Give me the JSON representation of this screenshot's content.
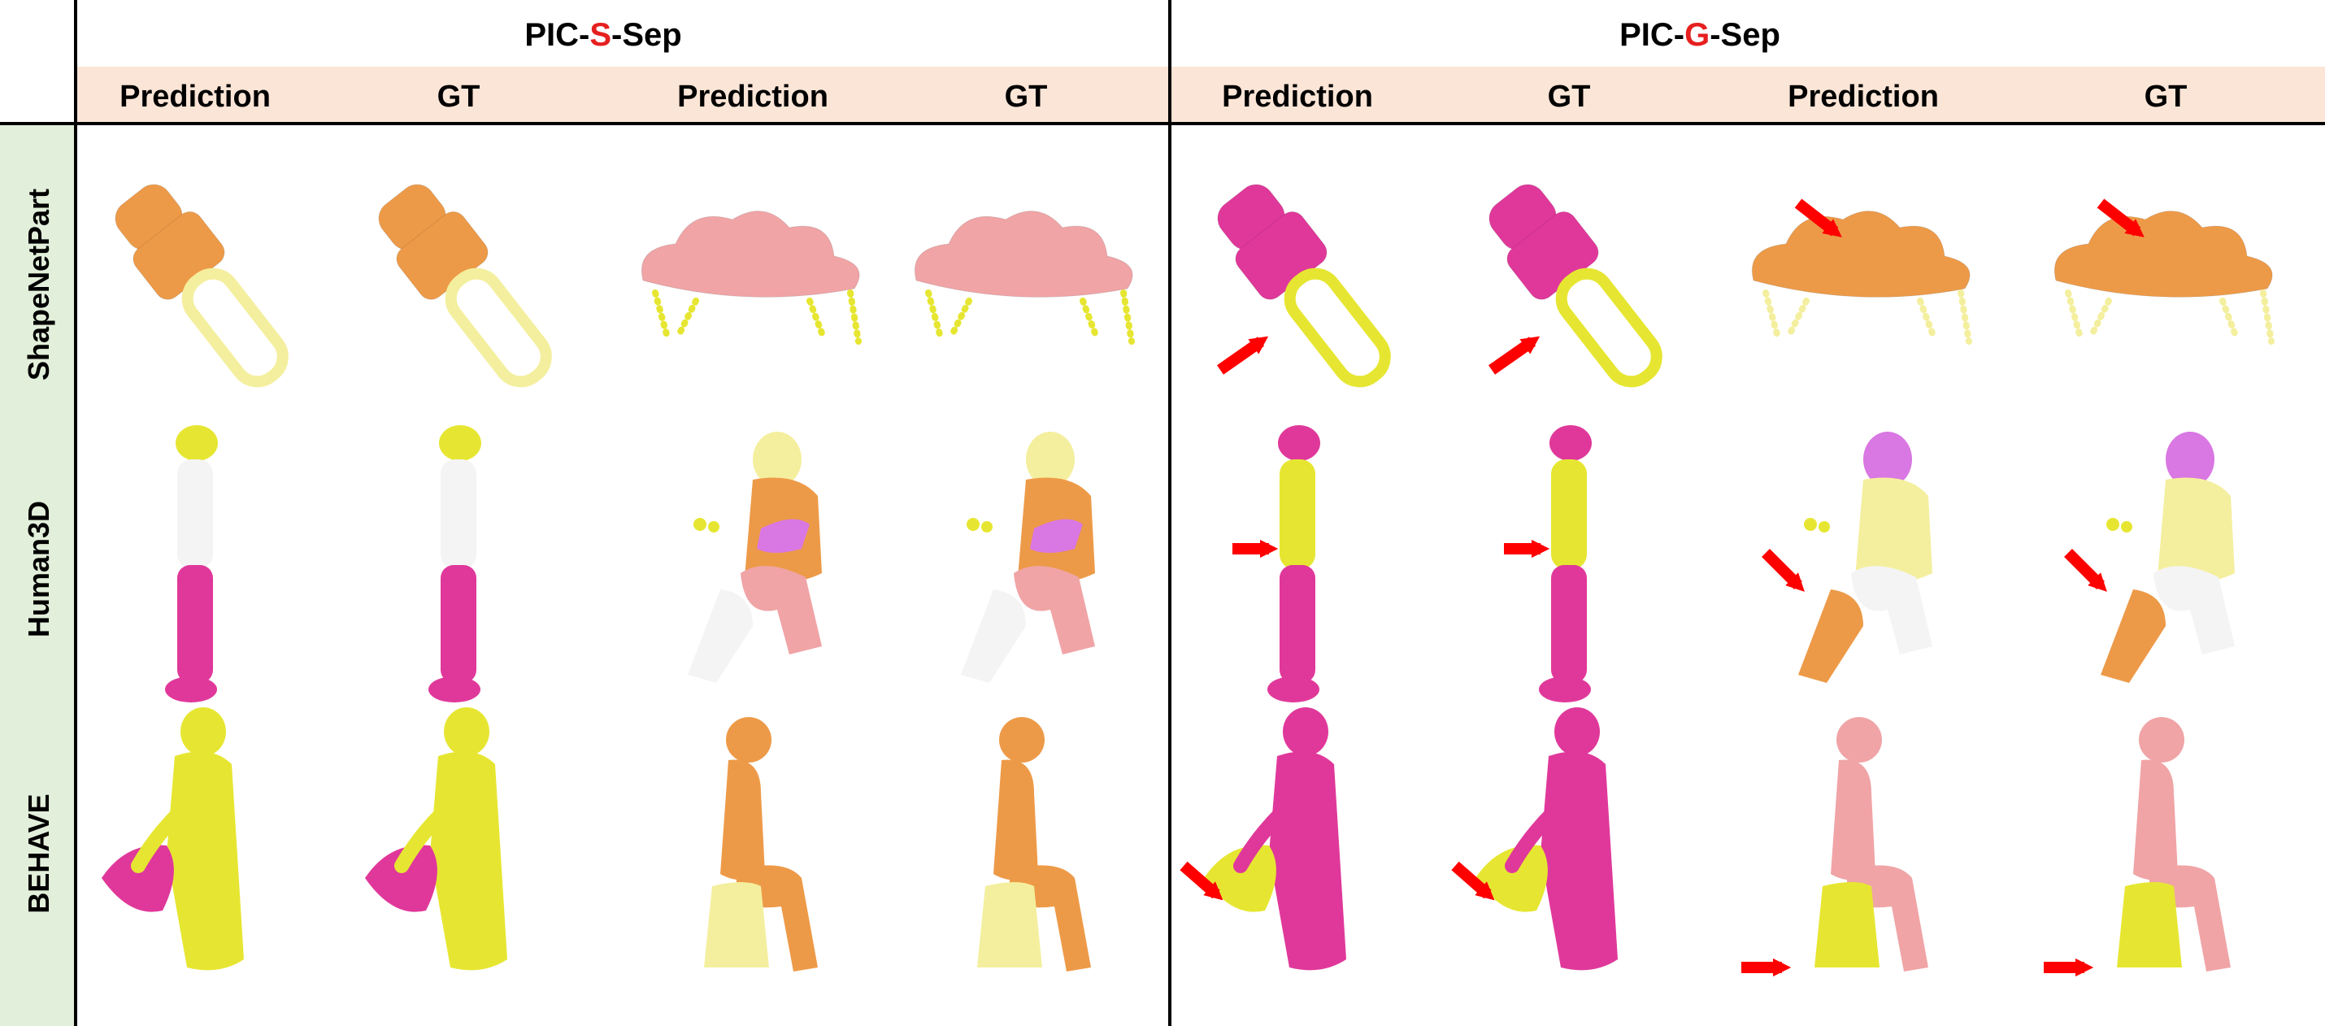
{
  "groups": [
    {
      "prefix": "PIC-",
      "highlight": "S",
      "suffix": "-Sep"
    },
    {
      "prefix": "PIC-",
      "highlight": "G",
      "suffix": "-Sep"
    }
  ],
  "column_headers": [
    "Prediction",
    "GT",
    "Prediction",
    "GT",
    "Prediction",
    "GT",
    "Prediction",
    "GT"
  ],
  "row_headers": [
    "ShapeNetPart",
    "Human3D",
    "BEHAVE"
  ],
  "colors": {
    "header_band": "#fbe5d6",
    "row_band": "#e2efda",
    "highlight_text": "#e61f1f",
    "arrow": "#ff0000",
    "orange": "#ed9a48",
    "pale_yellow": "#f4ef9e",
    "yellow": "#e6e632",
    "pink": "#f0a4a6",
    "magenta": "#e0389a",
    "white": "#f4f4f4",
    "violet": "#d977e3"
  },
  "cells": [
    [
      {
        "shape": "usb",
        "parts": [
          "orange",
          "pale_yellow"
        ]
      },
      {
        "shape": "usb",
        "parts": [
          "orange",
          "pale_yellow"
        ]
      },
      {
        "shape": "table",
        "parts": [
          "pink",
          "yellow"
        ]
      },
      {
        "shape": "table",
        "parts": [
          "pink",
          "yellow"
        ]
      },
      {
        "shape": "usb",
        "parts": [
          "magenta",
          "yellow"
        ],
        "arrow": "left"
      },
      {
        "shape": "usb",
        "parts": [
          "magenta",
          "yellow"
        ],
        "arrow": "left"
      },
      {
        "shape": "table",
        "parts": [
          "orange",
          "pale_yellow"
        ],
        "arrow": "top"
      },
      {
        "shape": "table",
        "parts": [
          "orange",
          "pale_yellow"
        ],
        "arrow": "top"
      }
    ],
    [
      {
        "shape": "stand",
        "parts": [
          "yellow",
          "white",
          "magenta"
        ]
      },
      {
        "shape": "stand",
        "parts": [
          "yellow",
          "white",
          "magenta"
        ]
      },
      {
        "shape": "sit",
        "parts": [
          "pale_yellow",
          "orange",
          "violet",
          "pink",
          "white"
        ]
      },
      {
        "shape": "sit",
        "parts": [
          "pale_yellow",
          "orange",
          "violet",
          "pink",
          "white"
        ]
      },
      {
        "shape": "stand",
        "parts": [
          "magenta",
          "yellow",
          "magenta"
        ],
        "arrow": "left"
      },
      {
        "shape": "stand",
        "parts": [
          "magenta",
          "yellow",
          "magenta"
        ],
        "arrow": "left"
      },
      {
        "shape": "sit",
        "parts": [
          "violet",
          "pale_yellow",
          "pale_yellow",
          "white",
          "orange"
        ],
        "arrow": "left"
      },
      {
        "shape": "sit",
        "parts": [
          "violet",
          "pale_yellow",
          "pale_yellow",
          "white",
          "orange"
        ],
        "arrow": "left"
      }
    ],
    [
      {
        "shape": "carry",
        "parts": [
          "yellow",
          "magenta"
        ]
      },
      {
        "shape": "carry",
        "parts": [
          "yellow",
          "magenta"
        ]
      },
      {
        "shape": "sitlow",
        "parts": [
          "orange",
          "pale_yellow"
        ]
      },
      {
        "shape": "sitlow",
        "parts": [
          "orange",
          "pale_yellow"
        ]
      },
      {
        "shape": "carry",
        "parts": [
          "magenta",
          "yellow"
        ],
        "arrow": "left"
      },
      {
        "shape": "carry",
        "parts": [
          "magenta",
          "yellow"
        ],
        "arrow": "left"
      },
      {
        "shape": "sitlow",
        "parts": [
          "pink",
          "yellow"
        ],
        "arrow": "bottom"
      },
      {
        "shape": "sitlow",
        "parts": [
          "pink",
          "yellow"
        ],
        "arrow": "bottom"
      }
    ]
  ]
}
